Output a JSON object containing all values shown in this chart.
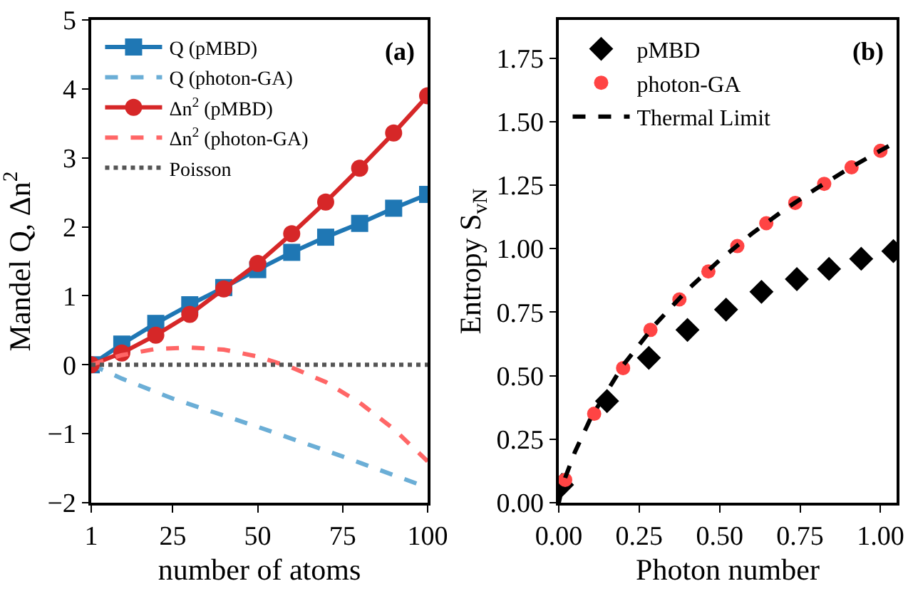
{
  "chart_data": [
    {
      "type": "line",
      "xlabel": "number of atoms",
      "ylabel": "Mandel Q, Δn$^{2}$",
      "annotations": [
        "(a)"
      ],
      "xlim": [
        1,
        100
      ],
      "xticks": [
        1,
        25,
        50,
        75,
        100
      ],
      "ylim": [
        -2,
        5
      ],
      "yticks": [
        {
          "value": -2,
          "label": "−2"
        },
        {
          "value": -1,
          "label": "−1"
        },
        0,
        1,
        2,
        3,
        4,
        5
      ],
      "grid": false,
      "legend": "top left",
      "series": [
        {
          "name": "Q (pMBD)",
          "color": "#1f77b4",
          "marker": "square",
          "line_style": "solid",
          "x": [
            1,
            10,
            20,
            30,
            40,
            50,
            60,
            70,
            80,
            90,
            100
          ],
          "values": [
            0,
            0.3,
            0.6,
            0.87,
            1.12,
            1.38,
            1.63,
            1.85,
            2.05,
            2.27,
            2.47
          ]
        },
        {
          "name": "Q (photon-GA)",
          "color": "#6baed6",
          "marker": "none",
          "line_style": "dashed",
          "x": [
            1,
            10,
            25,
            50,
            75,
            100
          ],
          "values": [
            0,
            -0.2,
            -0.49,
            -0.9,
            -1.33,
            -1.78
          ]
        },
        {
          "name": "Δn$^{2}$ (pMBD)",
          "color": "#d62728",
          "marker": "circle",
          "line_style": "solid",
          "x": [
            1,
            10,
            20,
            30,
            40,
            50,
            60,
            70,
            80,
            90,
            100
          ],
          "values": [
            0,
            0.17,
            0.43,
            0.73,
            1.1,
            1.47,
            1.9,
            2.36,
            2.85,
            3.36,
            3.9
          ]
        },
        {
          "name": "Δn$^{2}$ (photon-GA)",
          "color": "#ff6666",
          "marker": "none",
          "line_style": "dashed",
          "x": [
            1,
            10,
            20,
            30,
            40,
            50,
            60,
            70,
            80,
            90,
            100
          ],
          "values": [
            0,
            0.14,
            0.23,
            0.25,
            0.22,
            0.12,
            -0.04,
            -0.25,
            -0.55,
            -0.93,
            -1.4
          ]
        },
        {
          "name": "Poisson",
          "color": "#555555",
          "marker": "none",
          "line_style": "dotted",
          "x": [
            1,
            100
          ],
          "values": [
            0,
            0
          ]
        }
      ]
    },
    {
      "type": "scatter",
      "xlabel": "Photon number",
      "ylabel": "Entropy S$_{vN}$",
      "annotations": [
        "(b)"
      ],
      "xlim": [
        0,
        1.05
      ],
      "xticks": [
        {
          "value": 0,
          "label": "0.00"
        },
        0.25,
        {
          "value": 0.5,
          "label": "0.50"
        },
        0.75,
        {
          "value": 1,
          "label": "1.00"
        }
      ],
      "ylim": [
        0,
        1.9
      ],
      "yticks": [
        {
          "value": 0,
          "label": "0.00"
        },
        0.25,
        {
          "value": 0.5,
          "label": "0.50"
        },
        0.75,
        {
          "value": 1,
          "label": "1.00"
        },
        1.25,
        {
          "value": 1.5,
          "label": "1.50"
        },
        1.75
      ],
      "grid": false,
      "legend": "top left",
      "series": [
        {
          "name": "pMBD",
          "color": "#000000",
          "marker": "diamond",
          "x": [
            0.01,
            0.15,
            0.28,
            0.4,
            0.52,
            0.63,
            0.74,
            0.84,
            0.94,
            1.04
          ],
          "values": [
            0.07,
            0.4,
            0.57,
            0.68,
            0.76,
            0.83,
            0.88,
            0.92,
            0.96,
            0.99
          ]
        },
        {
          "name": "photon-GA",
          "color": "#ff4444",
          "marker": "circle",
          "x": [
            0.02,
            0.11,
            0.2,
            0.285,
            0.375,
            0.465,
            0.555,
            0.645,
            0.735,
            0.825,
            0.91,
            1.0
          ],
          "values": [
            0.09,
            0.35,
            0.53,
            0.68,
            0.8,
            0.91,
            1.01,
            1.1,
            1.18,
            1.255,
            1.32,
            1.385
          ]
        },
        {
          "name": "Thermal Limit",
          "type": "line",
          "color": "#000000",
          "marker": "none",
          "line_style": "dashed",
          "x": [
            0,
            0.01,
            0.02,
            0.05,
            0.1,
            0.2,
            0.3,
            0.4,
            0.5,
            0.6,
            0.7,
            0.8,
            0.9,
            1.0,
            1.05
          ],
          "values": [
            0,
            0.056,
            0.098,
            0.199,
            0.335,
            0.541,
            0.702,
            0.838,
            0.955,
            1.059,
            1.152,
            1.236,
            1.314,
            1.386,
            1.42
          ]
        }
      ]
    }
  ]
}
